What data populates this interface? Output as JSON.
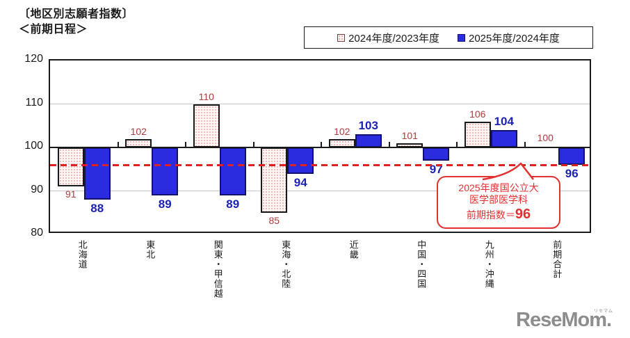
{
  "header": {
    "title": "〔地区別志願者指数〕",
    "subtitle": "＜前期日程＞"
  },
  "legend": {
    "items": [
      {
        "label": "2024年度/2023年度",
        "swatch": "pink-dotted"
      },
      {
        "label": "2025年度/2024年度",
        "swatch": "blue-solid"
      }
    ]
  },
  "chart_data": {
    "type": "bar",
    "categories": [
      "北海道",
      "東北",
      "関東・甲信越",
      "東海・北陸",
      "近畿",
      "中国・四国",
      "九州・沖縄",
      "前期合計"
    ],
    "series": [
      {
        "name": "2024年度/2023年度",
        "values": [
          91,
          102,
          110,
          85,
          102,
          101,
          106,
          100
        ]
      },
      {
        "name": "2025年度/2024年度",
        "values": [
          88,
          89,
          89,
          94,
          103,
          97,
          104,
          96
        ]
      }
    ],
    "baseline": 100,
    "ylim": [
      80,
      120
    ],
    "yticks": [
      80,
      90,
      100,
      110,
      120
    ],
    "grid": "horizontal",
    "legend_position": "top-right",
    "reference_line": {
      "value": 96,
      "style": "dashed",
      "color": "#dd2222"
    }
  },
  "annotation": {
    "line1": "2025年度国公立大",
    "line2": "医学部医学科",
    "line3_prefix": "前期指数＝",
    "line3_value": "96"
  },
  "watermark": {
    "text": "ReseMom.",
    "ruby": "リセマム"
  },
  "colors": {
    "series1_fill": "#fdf4f4",
    "series1_dots": "#efa5a5",
    "series1_label": "#b03b3b",
    "series2_fill": "#2b2be0",
    "series2_label": "#1c22b4",
    "reference_red": "#dd2222",
    "callout_red": "#e03030",
    "watermark_gray": "#8d8d8d"
  }
}
